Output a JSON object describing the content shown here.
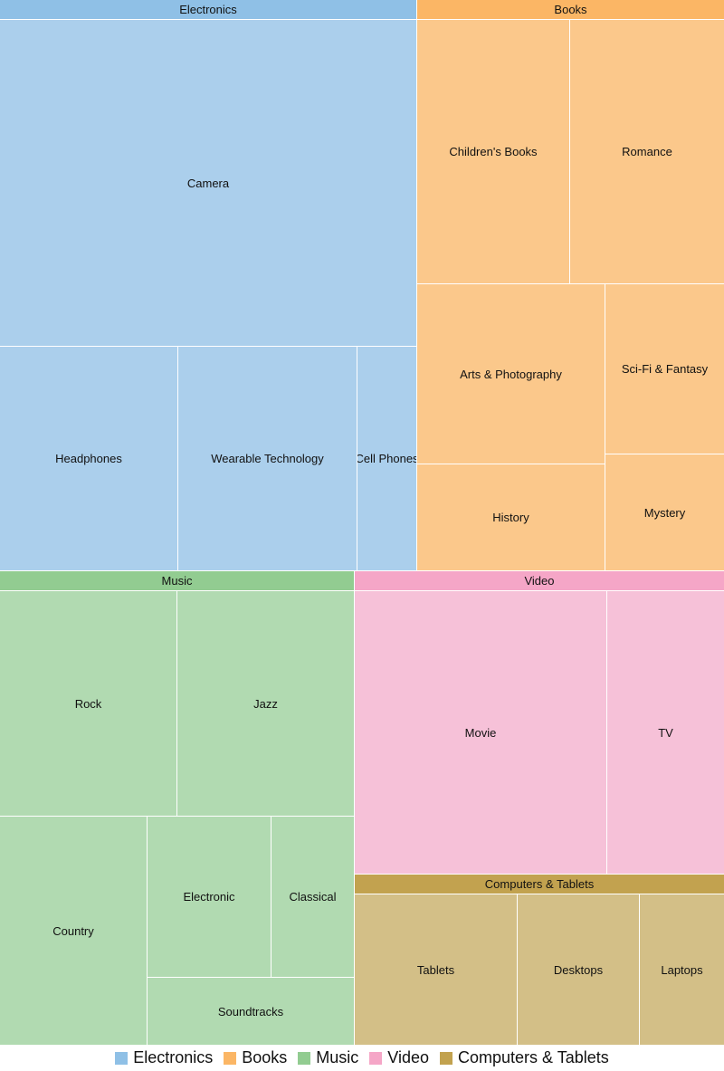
{
  "chart_data": {
    "type": "treemap",
    "groups": [
      {
        "name": "Electronics",
        "color": "#8fc0e6",
        "fill": "#abcfec",
        "children": [
          {
            "name": "Camera",
            "value": 1650
          },
          {
            "name": "Headphones",
            "value": 490
          },
          {
            "name": "Wearable Technology",
            "value": 490
          },
          {
            "name": "Cell Phones",
            "value": 160
          }
        ]
      },
      {
        "name": "Books",
        "color": "#fbb665",
        "fill": "#fbc88b",
        "children": [
          {
            "name": "Children's Books",
            "value": 490
          },
          {
            "name": "Romance",
            "value": 490
          },
          {
            "name": "Arts & Photography",
            "value": 400
          },
          {
            "name": "History",
            "value": 240
          },
          {
            "name": "Sci-Fi & Fantasy",
            "value": 240
          },
          {
            "name": "Mystery",
            "value": 160
          }
        ]
      },
      {
        "name": "Music",
        "color": "#92cc91",
        "fill": "#b1dab1",
        "children": [
          {
            "name": "Rock",
            "value": 480
          },
          {
            "name": "Jazz",
            "value": 480
          },
          {
            "name": "Country",
            "value": 400
          },
          {
            "name": "Electronic",
            "value": 240
          },
          {
            "name": "Classical",
            "value": 160
          },
          {
            "name": "Soundtracks",
            "value": 160
          }
        ]
      },
      {
        "name": "Video",
        "color": "#f5a6c7",
        "fill": "#f6c1d8",
        "children": [
          {
            "name": "Movie",
            "value": 750
          },
          {
            "name": "TV",
            "value": 375
          }
        ]
      },
      {
        "name": "Computers & Tablets",
        "color": "#c2a24f",
        "fill": "#d3bf87",
        "children": [
          {
            "name": "Tablets",
            "value": 240
          },
          {
            "name": "Desktops",
            "value": 180
          },
          {
            "name": "Laptops",
            "value": 120
          }
        ]
      }
    ],
    "legend": {
      "placement": "bottom",
      "entries": [
        "Electronics",
        "Books",
        "Music",
        "Video",
        "Computers & Tablets"
      ]
    }
  }
}
